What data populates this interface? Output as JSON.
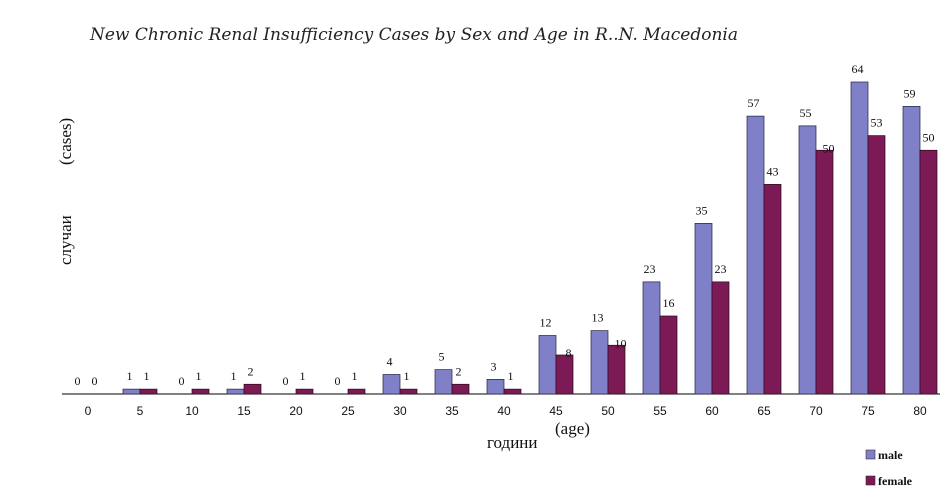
{
  "chart_data": {
    "type": "bar",
    "title": "New Chronic Renal Insufficiency Cases by Sex and Age in R..N. Macedonia",
    "ylabel": "случаи",
    "ylabel2": "(cases)",
    "xlabel": "години",
    "xlabel2": "(age)",
    "categories": [
      "0",
      "5",
      "10",
      "15",
      "20",
      "25",
      "30",
      "35",
      "40",
      "45",
      "50",
      "55",
      "60",
      "65",
      "70",
      "75",
      "80"
    ],
    "series": [
      {
        "name": "male",
        "color": "#8080c8",
        "values": [
          0,
          1,
          0,
          1,
          0,
          0,
          4,
          5,
          3,
          12,
          13,
          23,
          35,
          57,
          55,
          64,
          59
        ]
      },
      {
        "name": "female",
        "color": "#7b1a55",
        "values": [
          0,
          1,
          1,
          2,
          1,
          1,
          1,
          2,
          1,
          8,
          10,
          16,
          23,
          43,
          50,
          53,
          50
        ]
      }
    ],
    "ylim": [
      0,
      64
    ],
    "grid": false,
    "legend_position": "bottom-right",
    "data_labels": true
  }
}
